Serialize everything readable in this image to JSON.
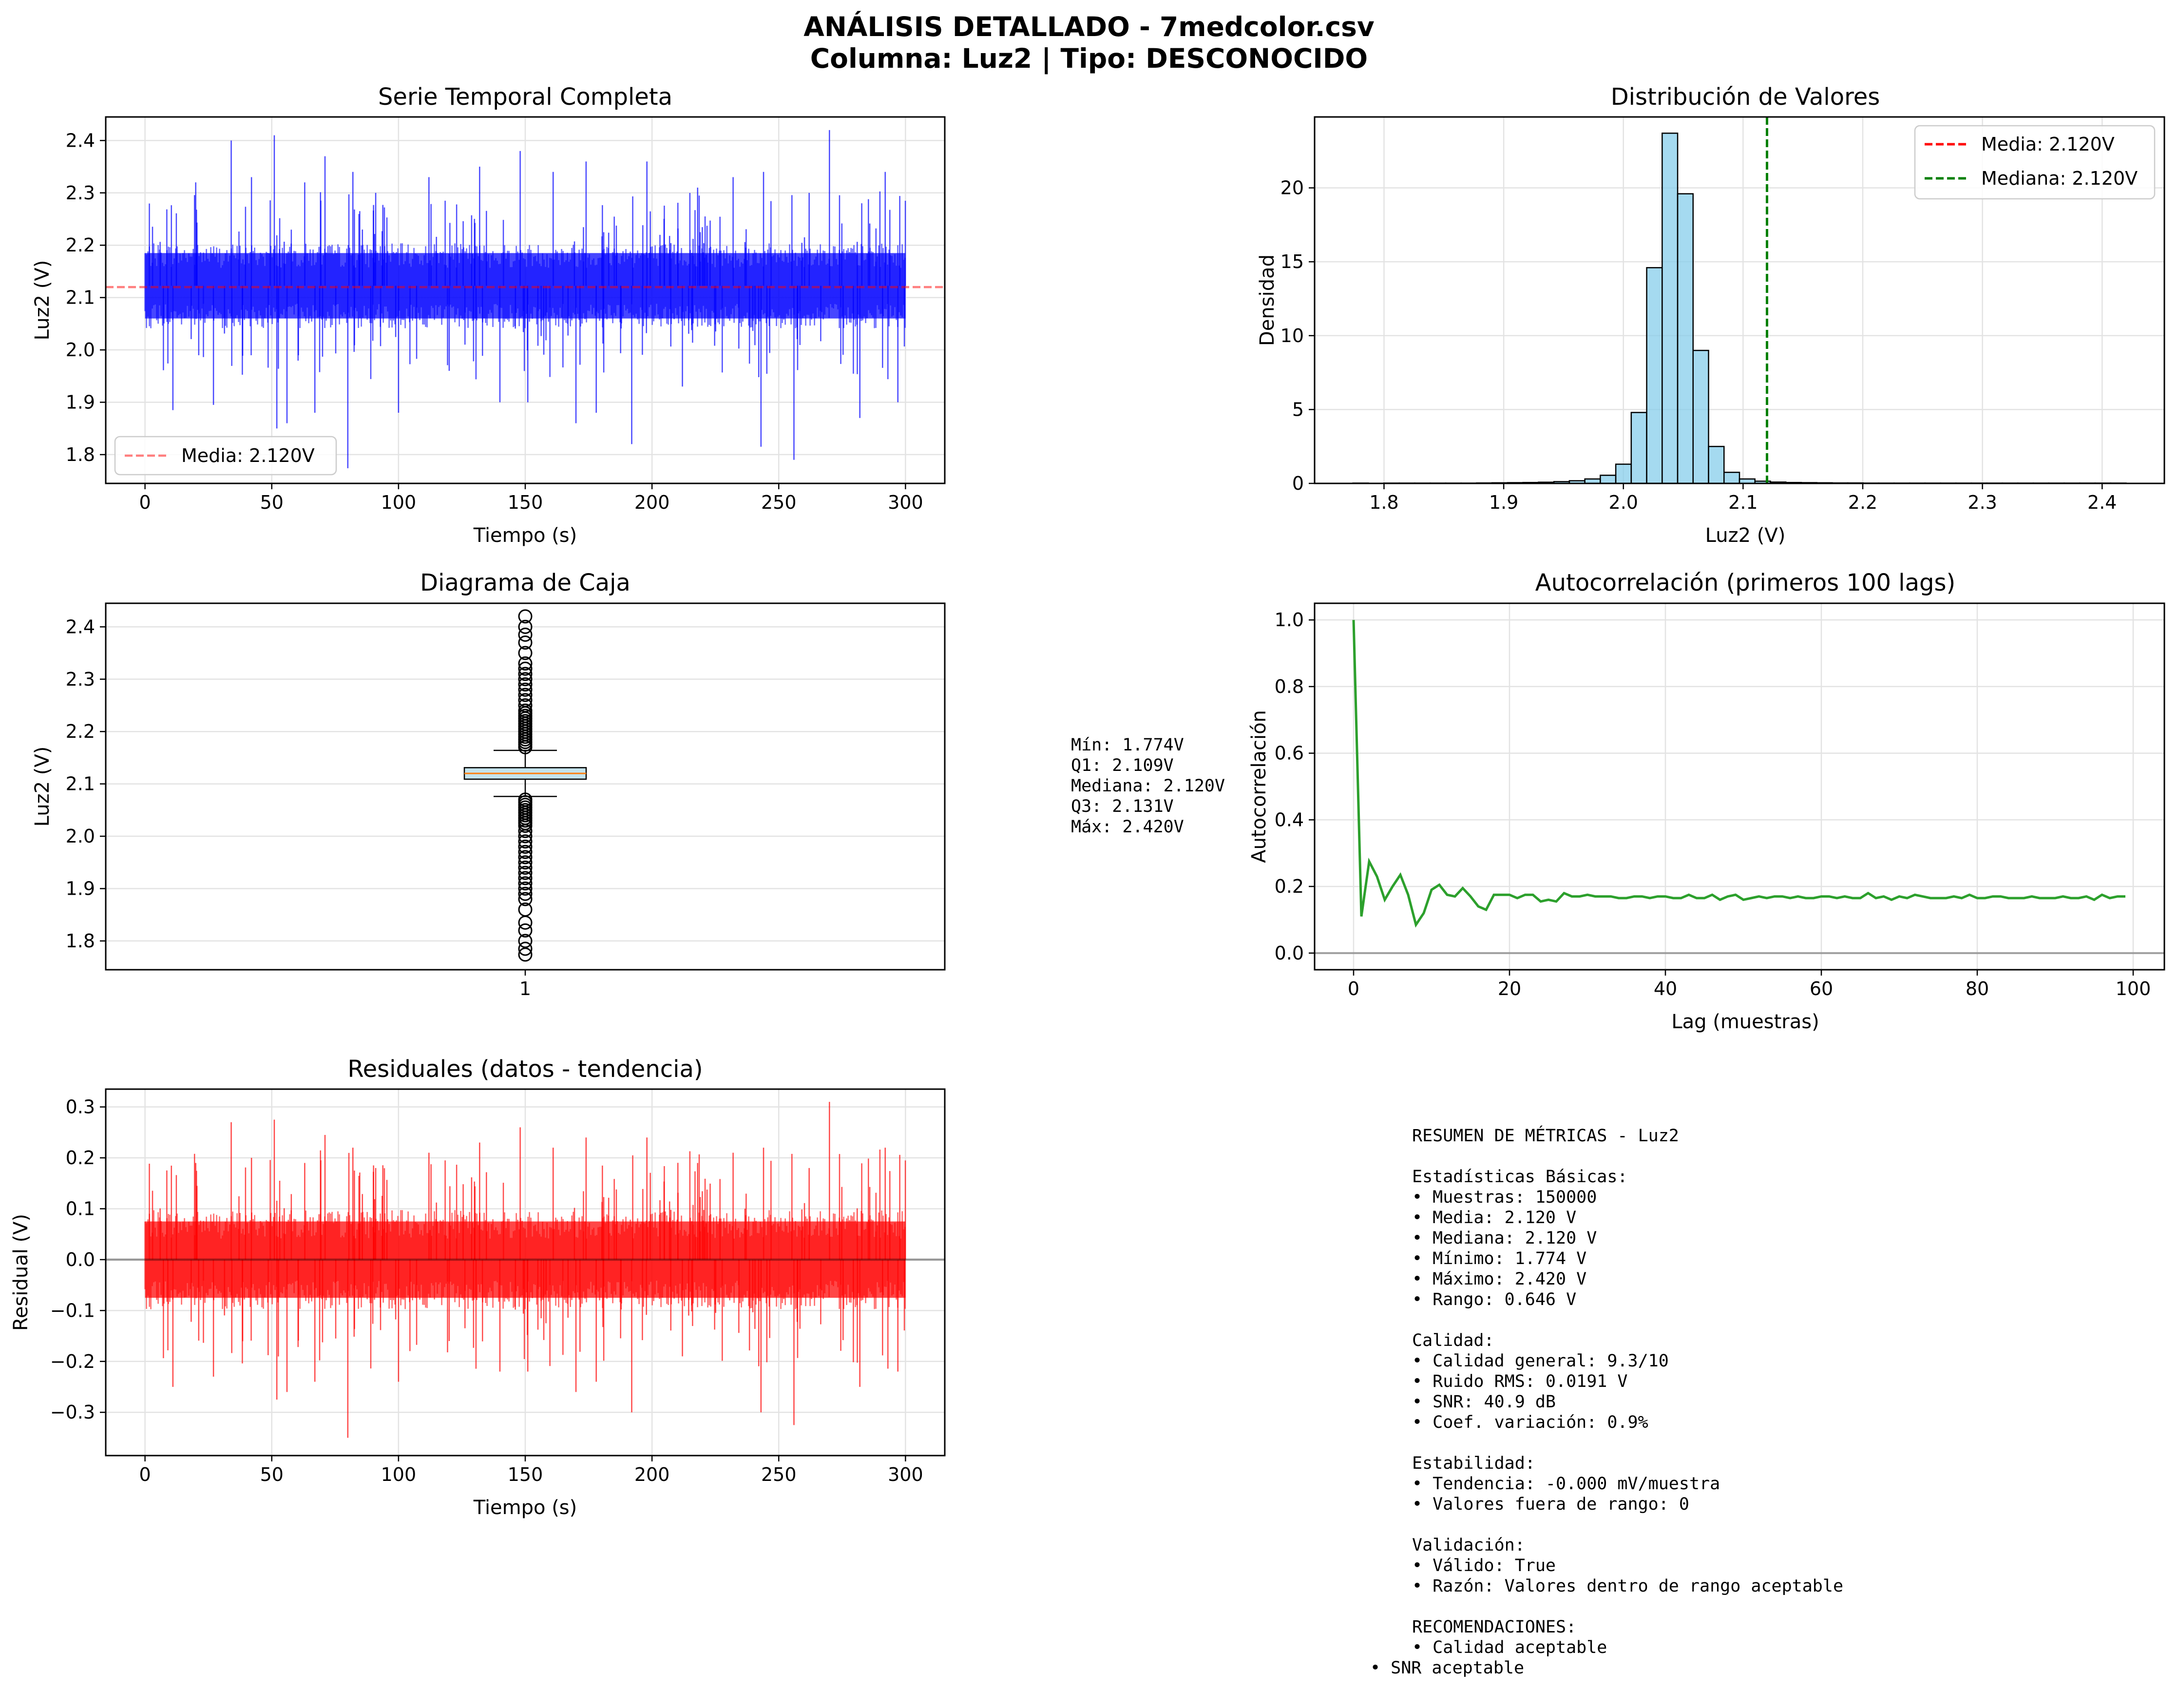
{
  "figure": {
    "title_line1": "ANÁLISIS DETALLADO - 7medcolor.csv",
    "title_line2": "Columna: Luz2 | Tipo: DESCONOCIDO"
  },
  "box_stats_text": [
    "Mín: 1.774V",
    "Q1: 2.109V",
    "Mediana: 2.120V",
    "Q3: 2.131V",
    "Máx: 2.420V"
  ],
  "summary_text": [
    "RESUMEN DE MÉTRICAS - Luz2",
    "",
    "Estadísticas Básicas:",
    "• Muestras: 150000",
    "• Media: 2.120 V",
    "• Mediana: 2.120 V",
    "• Mínimo: 1.774 V",
    "• Máximo: 2.420 V",
    "• Rango: 0.646 V",
    "",
    "Calidad:",
    "• Calidad general: 9.3/10",
    "• Ruido RMS: 0.0191 V",
    "• SNR: 40.9 dB",
    "• Coef. variación: 0.9%",
    "",
    "Estabilidad:",
    "• Tendencia: -0.000 mV/muestra",
    "• Valores fuera de rango: 0",
    "",
    "Validación:",
    "• Válido: True",
    "• Razón: Valores dentro de rango aceptable",
    "",
    "RECOMENDACIONES:",
    "• Calidad aceptable",
    "• SNR aceptable"
  ],
  "chart_data": [
    {
      "id": "timeseries",
      "type": "line",
      "title": "Serie Temporal Completa",
      "xlabel": "Tiempo (s)",
      "ylabel": "Luz2 (V)",
      "xlim": [
        -15.5,
        315.5
      ],
      "ylim": [
        1.745,
        2.445
      ],
      "xticks": [
        0,
        50,
        100,
        150,
        200,
        250,
        300
      ],
      "yticks": [
        1.8,
        1.9,
        2.0,
        2.1,
        2.2,
        2.3,
        2.4
      ],
      "ytick_labels": [
        "1.8",
        "1.9",
        "2.0",
        "2.1",
        "2.2",
        "2.3",
        "2.4"
      ],
      "color": "#0000ff",
      "band": {
        "x": [
          0,
          300
        ],
        "low": 2.06,
        "high": 2.185
      },
      "spikes": [
        {
          "x": 11,
          "y": 1.885
        },
        {
          "x": 20,
          "y": 2.32
        },
        {
          "x": 27,
          "y": 1.895
        },
        {
          "x": 34,
          "y": 2.4
        },
        {
          "x": 42,
          "y": 2.33
        },
        {
          "x": 51,
          "y": 2.41
        },
        {
          "x": 52,
          "y": 1.85
        },
        {
          "x": 56,
          "y": 1.86
        },
        {
          "x": 63,
          "y": 2.32
        },
        {
          "x": 67,
          "y": 1.88
        },
        {
          "x": 71,
          "y": 2.37
        },
        {
          "x": 80,
          "y": 1.774
        },
        {
          "x": 82,
          "y": 2.34
        },
        {
          "x": 91,
          "y": 2.3
        },
        {
          "x": 100,
          "y": 1.88
        },
        {
          "x": 112,
          "y": 2.33
        },
        {
          "x": 120,
          "y": 1.96
        },
        {
          "x": 132,
          "y": 2.35
        },
        {
          "x": 140,
          "y": 1.9
        },
        {
          "x": 148,
          "y": 2.38
        },
        {
          "x": 151,
          "y": 1.9
        },
        {
          "x": 161,
          "y": 2.34
        },
        {
          "x": 170,
          "y": 1.86
        },
        {
          "x": 174,
          "y": 2.36
        },
        {
          "x": 178,
          "y": 1.88
        },
        {
          "x": 192,
          "y": 1.82
        },
        {
          "x": 198,
          "y": 2.36
        },
        {
          "x": 212,
          "y": 1.93
        },
        {
          "x": 218,
          "y": 2.31
        },
        {
          "x": 232,
          "y": 2.33
        },
        {
          "x": 243,
          "y": 1.815
        },
        {
          "x": 244,
          "y": 2.34
        },
        {
          "x": 256,
          "y": 1.79
        },
        {
          "x": 262,
          "y": 2.3
        },
        {
          "x": 270,
          "y": 2.42
        },
        {
          "x": 282,
          "y": 1.87
        },
        {
          "x": 292,
          "y": 2.34
        },
        {
          "x": 297,
          "y": 1.9
        }
      ],
      "mean_line": {
        "y": 2.12,
        "color": "#ff0000",
        "label": "Media: 2.120V"
      },
      "legend": "lower-left"
    },
    {
      "id": "histogram",
      "type": "bar",
      "title": "Distribución de Valores",
      "xlabel": "Luz2 (V)",
      "ylabel": "Densidad",
      "xlim": [
        1.742,
        2.452
      ],
      "ylim": [
        0,
        24.8
      ],
      "xticks": [
        1.8,
        1.9,
        2.0,
        2.1,
        2.2,
        2.3,
        2.4
      ],
      "xtick_labels": [
        "1.8",
        "1.9",
        "2.0",
        "2.1",
        "2.2",
        "2.3",
        "2.4"
      ],
      "yticks": [
        0,
        5,
        10,
        15,
        20
      ],
      "bin_start": 1.774,
      "bin_width": 0.01292,
      "values": [
        0.02,
        0.01,
        0.02,
        0.02,
        0.02,
        0.02,
        0.02,
        0.02,
        0.03,
        0.04,
        0.05,
        0.06,
        0.08,
        0.12,
        0.18,
        0.3,
        0.55,
        1.3,
        4.8,
        14.6,
        23.7,
        19.6,
        9.0,
        2.5,
        0.75,
        0.3,
        0.15,
        0.09,
        0.06,
        0.05,
        0.04,
        0.03,
        0.03,
        0.02,
        0.02,
        0.02,
        0.02,
        0.02,
        0.02,
        0.02,
        0.02,
        0.02,
        0.02,
        0.02,
        0.02,
        0.02,
        0.02,
        0.02,
        0.02,
        0.02
      ],
      "bar_color": "#87ceeb",
      "vlines": [
        {
          "x": 2.12,
          "color": "#ff0000",
          "label": "Media: 2.120V"
        },
        {
          "x": 2.12,
          "color": "#008000",
          "label": "Mediana: 2.120V"
        }
      ],
      "legend": "top-right"
    },
    {
      "id": "boxplot",
      "type": "box",
      "title": "Diagrama de Caja",
      "xlabel": "",
      "ylabel": "Luz2 (V)",
      "xticks": [
        1
      ],
      "ylim": [
        1.745,
        2.445
      ],
      "yticks": [
        1.8,
        1.9,
        2.0,
        2.1,
        2.2,
        2.3,
        2.4
      ],
      "ytick_labels": [
        "1.8",
        "1.9",
        "2.0",
        "2.1",
        "2.2",
        "2.3",
        "2.4"
      ],
      "q1": 2.109,
      "median": 2.12,
      "q3": 2.131,
      "whisker_low": 2.076,
      "whisker_high": 2.164,
      "min": 1.774,
      "max": 2.42,
      "outliers_high": [
        2.17,
        2.175,
        2.18,
        2.185,
        2.19,
        2.195,
        2.2,
        2.205,
        2.21,
        2.215,
        2.22,
        2.225,
        2.23,
        2.235,
        2.24,
        2.25,
        2.26,
        2.27,
        2.28,
        2.29,
        2.3,
        2.31,
        2.32,
        2.33,
        2.35,
        2.37,
        2.385,
        2.4,
        2.42
      ],
      "outliers_low": [
        2.07,
        2.065,
        2.06,
        2.055,
        2.05,
        2.045,
        2.04,
        2.035,
        2.03,
        2.025,
        2.02,
        2.01,
        2.0,
        1.99,
        1.98,
        1.97,
        1.96,
        1.95,
        1.94,
        1.93,
        1.92,
        1.91,
        1.9,
        1.89,
        1.88,
        1.86,
        1.835,
        1.82,
        1.8,
        1.785,
        1.774
      ]
    },
    {
      "id": "autocorr",
      "type": "line",
      "title": "Autocorrelación (primeros 100 lags)",
      "xlabel": "Lag (muestras)",
      "ylabel": "Autocorrelación",
      "xlim": [
        -5,
        104
      ],
      "ylim": [
        -0.05,
        1.05
      ],
      "xticks": [
        0,
        20,
        40,
        60,
        80,
        100
      ],
      "yticks": [
        0.0,
        0.2,
        0.4,
        0.6,
        0.8,
        1.0
      ],
      "ytick_labels": [
        "0.0",
        "0.2",
        "0.4",
        "0.6",
        "0.8",
        "1.0"
      ],
      "color": "#2ca02c",
      "zero_line": 0,
      "values": [
        1.0,
        0.11,
        0.275,
        0.23,
        0.16,
        0.2,
        0.235,
        0.175,
        0.085,
        0.12,
        0.19,
        0.205,
        0.175,
        0.17,
        0.195,
        0.17,
        0.14,
        0.13,
        0.175,
        0.175,
        0.175,
        0.165,
        0.175,
        0.175,
        0.155,
        0.16,
        0.155,
        0.18,
        0.17,
        0.17,
        0.175,
        0.17,
        0.17,
        0.17,
        0.165,
        0.165,
        0.17,
        0.17,
        0.165,
        0.17,
        0.17,
        0.165,
        0.165,
        0.175,
        0.165,
        0.165,
        0.175,
        0.16,
        0.17,
        0.175,
        0.16,
        0.165,
        0.17,
        0.165,
        0.17,
        0.17,
        0.165,
        0.17,
        0.165,
        0.165,
        0.17,
        0.17,
        0.165,
        0.17,
        0.165,
        0.165,
        0.18,
        0.165,
        0.17,
        0.16,
        0.17,
        0.165,
        0.175,
        0.17,
        0.165,
        0.165,
        0.165,
        0.17,
        0.165,
        0.175,
        0.165,
        0.165,
        0.17,
        0.17,
        0.165,
        0.165,
        0.165,
        0.17,
        0.165,
        0.165,
        0.165,
        0.17,
        0.165,
        0.165,
        0.17,
        0.16,
        0.175,
        0.165,
        0.17,
        0.17
      ]
    },
    {
      "id": "residuals",
      "type": "line",
      "title": "Residuales (datos - tendencia)",
      "xlabel": "Tiempo (s)",
      "ylabel": "Residual (V)",
      "xlim": [
        -15.5,
        315.5
      ],
      "ylim": [
        -0.385,
        0.335
      ],
      "xticks": [
        0,
        50,
        100,
        150,
        200,
        250,
        300
      ],
      "yticks": [
        -0.3,
        -0.2,
        -0.1,
        0.0,
        0.1,
        0.2,
        0.3
      ],
      "ytick_labels": [
        "−0.3",
        "−0.2",
        "−0.1",
        "0.0",
        "0.1",
        "0.2",
        "0.3"
      ],
      "color": "#ff0000",
      "band": {
        "x": [
          0,
          300
        ],
        "low": -0.075,
        "high": 0.075
      },
      "spikes": [
        {
          "x": 11,
          "y": -0.25
        },
        {
          "x": 20,
          "y": 0.19
        },
        {
          "x": 27,
          "y": -0.23
        },
        {
          "x": 34,
          "y": 0.27
        },
        {
          "x": 42,
          "y": 0.2
        },
        {
          "x": 51,
          "y": 0.275
        },
        {
          "x": 52,
          "y": -0.275
        },
        {
          "x": 56,
          "y": -0.26
        },
        {
          "x": 63,
          "y": 0.19
        },
        {
          "x": 67,
          "y": -0.24
        },
        {
          "x": 71,
          "y": 0.245
        },
        {
          "x": 80,
          "y": -0.35
        },
        {
          "x": 82,
          "y": 0.22
        },
        {
          "x": 91,
          "y": 0.18
        },
        {
          "x": 100,
          "y": -0.24
        },
        {
          "x": 112,
          "y": 0.21
        },
        {
          "x": 120,
          "y": -0.16
        },
        {
          "x": 132,
          "y": 0.23
        },
        {
          "x": 140,
          "y": -0.22
        },
        {
          "x": 148,
          "y": 0.26
        },
        {
          "x": 151,
          "y": -0.22
        },
        {
          "x": 161,
          "y": 0.22
        },
        {
          "x": 170,
          "y": -0.26
        },
        {
          "x": 174,
          "y": 0.24
        },
        {
          "x": 178,
          "y": -0.24
        },
        {
          "x": 192,
          "y": -0.3
        },
        {
          "x": 198,
          "y": 0.24
        },
        {
          "x": 212,
          "y": -0.19
        },
        {
          "x": 218,
          "y": 0.19
        },
        {
          "x": 232,
          "y": 0.21
        },
        {
          "x": 243,
          "y": -0.3
        },
        {
          "x": 244,
          "y": 0.22
        },
        {
          "x": 256,
          "y": -0.325
        },
        {
          "x": 262,
          "y": 0.18
        },
        {
          "x": 270,
          "y": 0.31
        },
        {
          "x": 282,
          "y": -0.25
        },
        {
          "x": 292,
          "y": 0.22
        },
        {
          "x": 297,
          "y": -0.22
        }
      ],
      "zero_line": 0
    }
  ]
}
